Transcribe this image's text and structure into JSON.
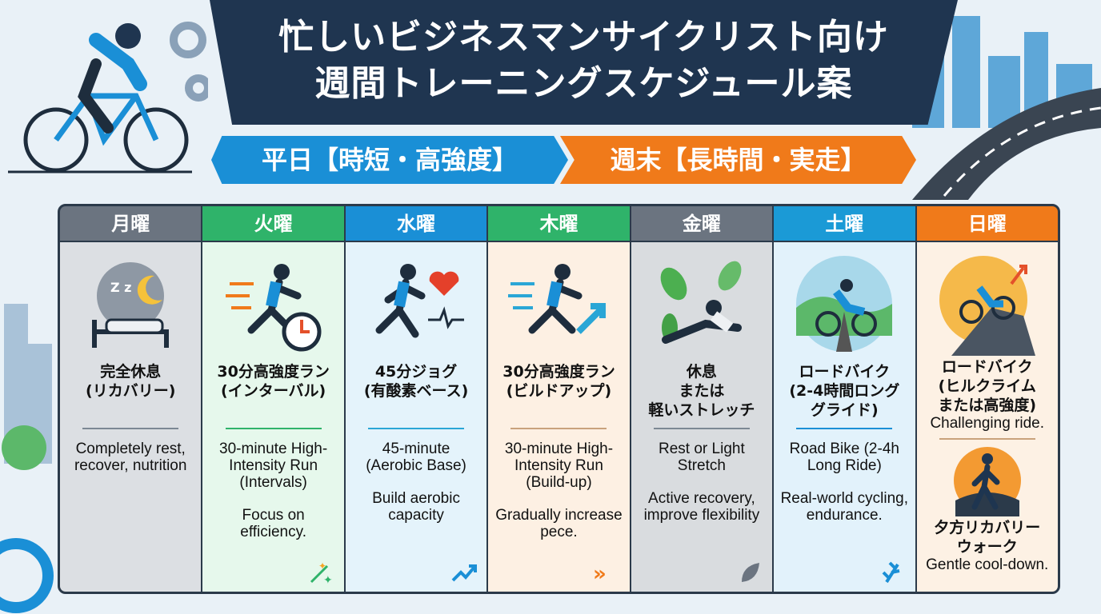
{
  "title": {
    "line1": "忙しいビジネスマンサイクリスト向け",
    "line2": "週間トレーニングスケジュール案"
  },
  "ribbons": {
    "weekday": "平日【時短・高強度】",
    "weekend": "週末【長時間・実走】"
  },
  "colors": {
    "navy": "#1f3550",
    "blue": "#1a8fd6",
    "orange": "#f07a1a",
    "green": "#2fb36a",
    "gray": "#6b7480"
  },
  "days": [
    {
      "day": "月曜",
      "jp": "完全休息\n(リカバリー)",
      "en": "Completely rest, recover, nutrition",
      "en2": "",
      "icon": "sleeping-bed-icon"
    },
    {
      "day": "火曜",
      "jp": "30分高強度ラン\n(インターバル)",
      "en": "30-minute High-Intensity Run (Intervals)",
      "en2": "Focus on efficiency.",
      "icon": "runner-stopwatch-icon"
    },
    {
      "day": "水曜",
      "jp": "45分ジョグ\n(有酸素ベース)",
      "en": "45-minute (Aerobic Base)",
      "en2": "Build aerobic capacity",
      "icon": "runner-heart-icon"
    },
    {
      "day": "木曜",
      "jp": "30分高強度ラン\n(ビルドアップ)",
      "en": "30-minute High-Intensity Run (Build-up)",
      "en2": "Gradually increase pece.",
      "icon": "runner-arrow-icon"
    },
    {
      "day": "金曜",
      "jp": "休息\nまたは\n軽いストレッチ",
      "en": "Rest or Light Stretch",
      "en2": "Active recovery, improve flexibility",
      "icon": "stretch-leaves-icon"
    },
    {
      "day": "土曜",
      "jp": "ロードバイク\n(2-4時間ロング\nグライド)",
      "en": "Road Bike (2-4h Long Ride)",
      "en2": "Real-world cycling, endurance.",
      "icon": "road-cyclist-icon"
    },
    {
      "day": "日曜",
      "jp": "ロードバイク\n(ヒルクライム\nまたは高強度)",
      "en": "Challenging ride.",
      "jp2": "夕方リカバリー\nウォーク",
      "en2": "Gentle cool-down.",
      "icon": "hill-climb-icon",
      "icon2": "sunset-walk-icon"
    }
  ]
}
